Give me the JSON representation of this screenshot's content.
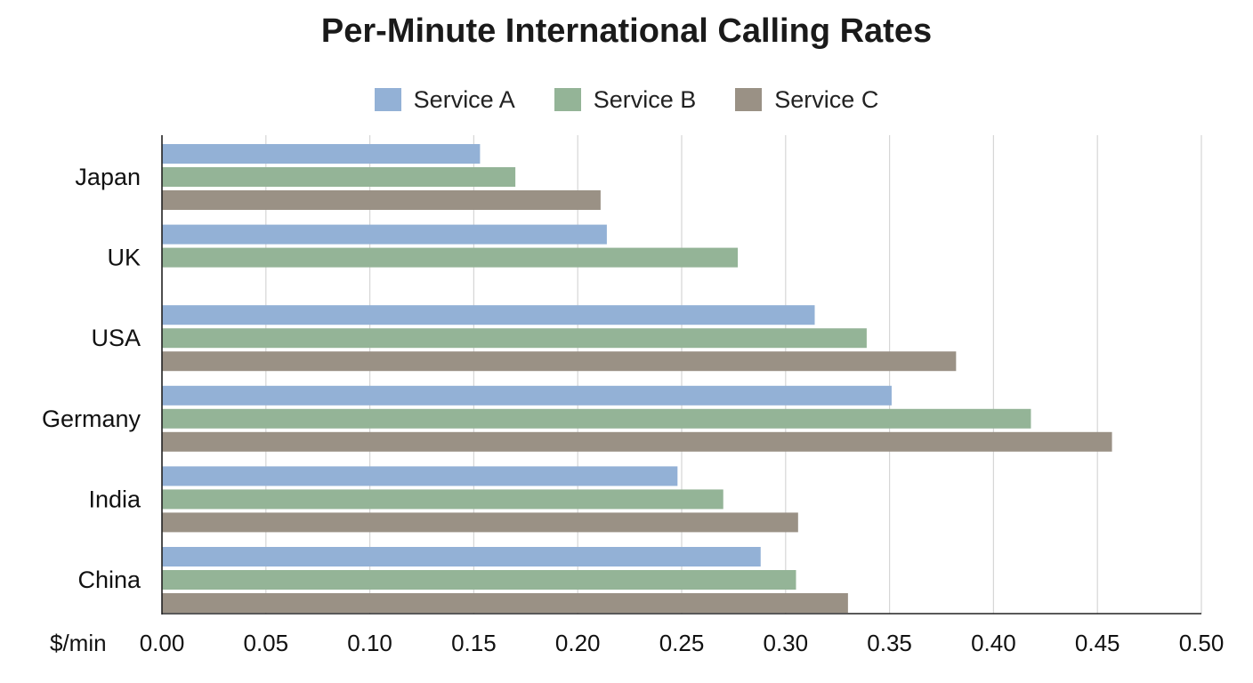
{
  "chart_data": {
    "type": "bar",
    "orientation": "horizontal",
    "title": "Per-Minute International Calling Rates",
    "xlabel": "$/min",
    "ylabel": "",
    "categories": [
      "Japan",
      "UK",
      "USA",
      "Germany",
      "India",
      "China"
    ],
    "series": [
      {
        "name": "Service A",
        "color": "#93b1d6",
        "values": [
          0.153,
          0.214,
          0.314,
          0.351,
          0.248,
          0.288
        ]
      },
      {
        "name": "Service B",
        "color": "#94b497",
        "values": [
          0.17,
          0.277,
          0.339,
          0.418,
          0.27,
          0.305
        ]
      },
      {
        "name": "Service C",
        "color": "#9a9185",
        "values": [
          0.211,
          null,
          0.382,
          0.457,
          0.306,
          0.33
        ]
      }
    ],
    "xlim": [
      0,
      0.5
    ],
    "xticks": [
      "0.00",
      "0.05",
      "0.10",
      "0.15",
      "0.20",
      "0.25",
      "0.30",
      "0.35",
      "0.40",
      "0.45",
      "0.50"
    ],
    "grid": true,
    "legend_position": "top-center"
  }
}
